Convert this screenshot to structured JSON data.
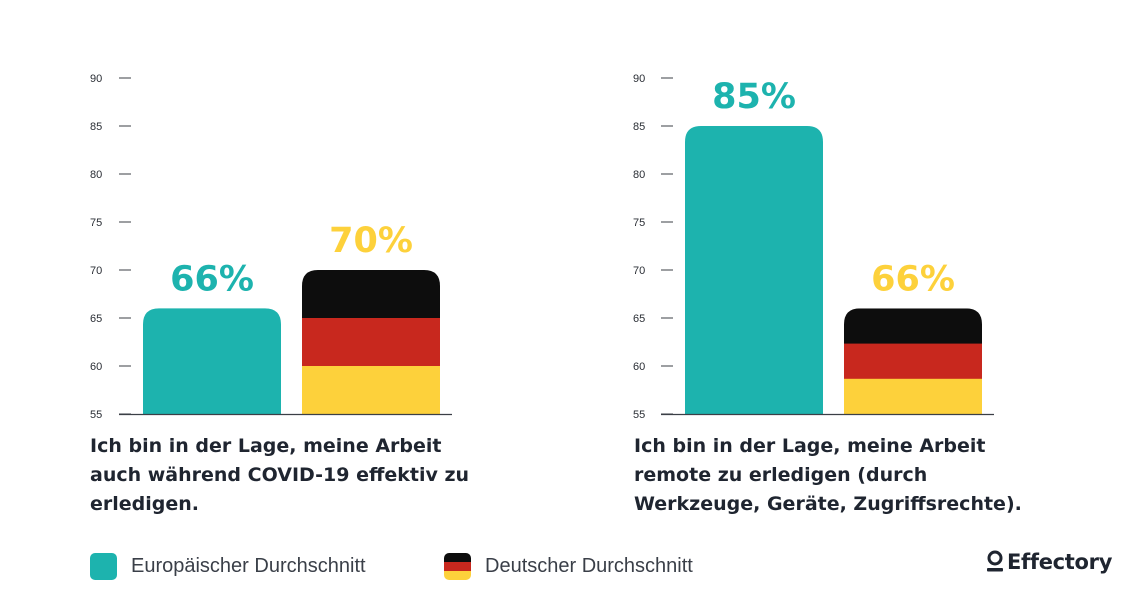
{
  "colors": {
    "europe": "#1db3ae",
    "germany_black": "#0d0d0d",
    "germany_red": "#c8281e",
    "germany_gold": "#fdd13b",
    "europe_label": "#1db3ae",
    "germany_label": "#fdd13b",
    "axis": "#3b3f46",
    "tick_text": "#2a2e35"
  },
  "chart_data": [
    {
      "type": "bar",
      "title": "Ich bin in der Lage, meine Arbeit auch während COVID-19 effektiv zu erledigen.",
      "categories": [
        "Europäischer Durchschnitt",
        "Deutscher Durchschnitt"
      ],
      "values": [
        66,
        70
      ],
      "data_labels": [
        "66%",
        "70%"
      ],
      "ylim": [
        55,
        90
      ],
      "yticks": [
        "55",
        "60",
        "65",
        "70",
        "75",
        "80",
        "85",
        "90"
      ],
      "xlabel": "",
      "ylabel": "",
      "grid": false
    },
    {
      "type": "bar",
      "title": "Ich bin in der Lage, meine Arbeit remote zu erledigen (durch Werkzeuge, Geräte, Zugriffsrechte).",
      "categories": [
        "Europäischer Durchschnitt",
        "Deutscher Durchschnitt"
      ],
      "values": [
        85,
        66
      ],
      "data_labels": [
        "85%",
        "66%"
      ],
      "ylim": [
        55,
        90
      ],
      "yticks": [
        "55",
        "60",
        "65",
        "70",
        "75",
        "80",
        "85",
        "90"
      ],
      "xlabel": "",
      "ylabel": "",
      "grid": false
    }
  ],
  "legend": {
    "placement": "bottom-left",
    "items": [
      {
        "label": "Europäischer Durchschnitt",
        "swatch": "europe"
      },
      {
        "label": "Deutscher Durchschnitt",
        "swatch": "germany"
      }
    ]
  },
  "brand": {
    "name": "Effectory",
    "icon": "effectory-logo-icon"
  }
}
